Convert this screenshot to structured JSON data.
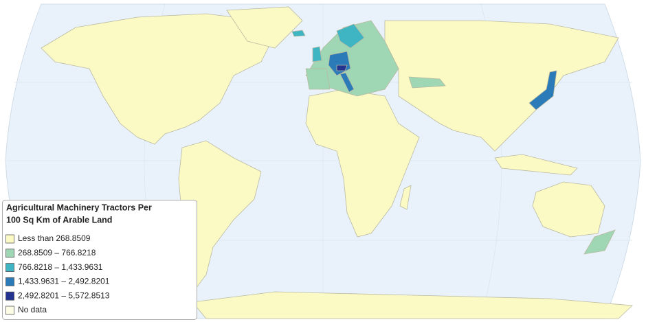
{
  "legend": {
    "title_lines": [
      "Agricultural Machinery Tractors Per",
      "100 Sq Km of Arable Land"
    ],
    "items": [
      {
        "label": "Less than 268.8509",
        "color": "#fcfac4"
      },
      {
        "label": "268.8509 – 766.8218",
        "color": "#9fd6b4"
      },
      {
        "label": "766.8218 – 1,433.9631",
        "color": "#3fb5c4"
      },
      {
        "label": "1,433.9631 – 2,492.8201",
        "color": "#2b7bb9"
      },
      {
        "label": "2,492.8201 – 5,572.8513",
        "color": "#24338f"
      },
      {
        "label": "No data",
        "color": "#fdfde6"
      }
    ]
  }
}
